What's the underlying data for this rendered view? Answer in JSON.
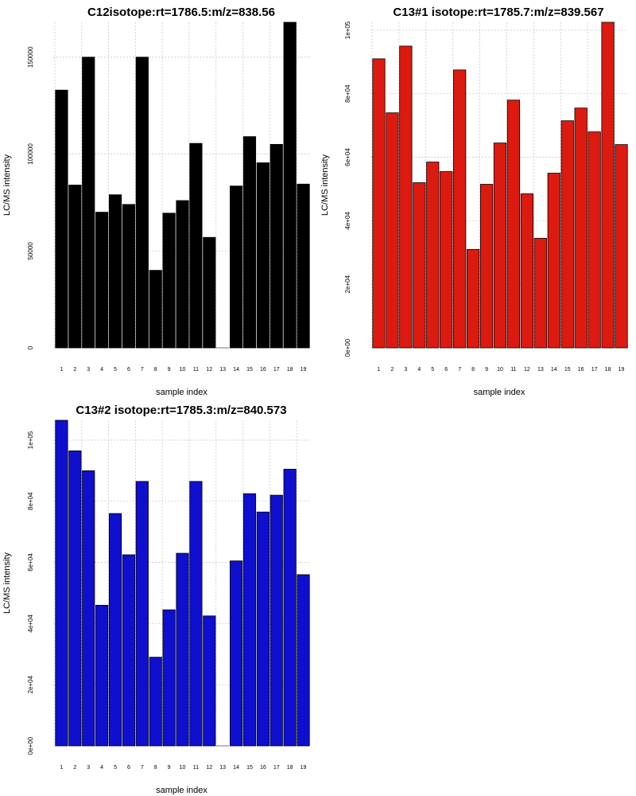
{
  "chart_data": [
    {
      "type": "bar",
      "title": "C12isotope:rt=1786.5:m/z=838.56",
      "xlabel": "sample index",
      "ylabel": "LC/MS intensity",
      "categories": [
        "1",
        "2",
        "3",
        "4",
        "5",
        "6",
        "7",
        "8",
        "9",
        "10",
        "11",
        "12",
        "13",
        "14",
        "15",
        "16",
        "17",
        "18",
        "19"
      ],
      "values": [
        133000,
        84000,
        150000,
        70000,
        79000,
        74000,
        150000,
        40000,
        69500,
        76000,
        105500,
        57000,
        0,
        83500,
        109000,
        95500,
        105000,
        168000,
        84500
      ],
      "ylim": [
        0,
        168000
      ],
      "yticks": [
        0,
        50000,
        100000,
        150000
      ],
      "ytick_labels": [
        "0",
        "50000",
        "100000",
        "150000"
      ],
      "grid": true,
      "bar_color": "#000000"
    },
    {
      "type": "bar",
      "title": "C13#1 isotope:rt=1785.7:m/z=839.567",
      "xlabel": "sample index",
      "ylabel": "LC/MS intensity",
      "categories": [
        "1",
        "2",
        "3",
        "4",
        "5",
        "6",
        "7",
        "8",
        "9",
        "10",
        "11",
        "12",
        "13",
        "14",
        "15",
        "16",
        "17",
        "18",
        "19"
      ],
      "values": [
        91000,
        74000,
        95000,
        52000,
        58500,
        55500,
        87500,
        31000,
        51500,
        64500,
        78000,
        48500,
        34500,
        55000,
        71500,
        75500,
        68000,
        102500,
        64000
      ],
      "ylim": [
        0,
        102500
      ],
      "yticks": [
        0,
        20000,
        40000,
        60000,
        80000,
        100000
      ],
      "ytick_labels": [
        "0e+00",
        "2e+04",
        "4e+04",
        "6e+04",
        "8e+04",
        "1e+05"
      ],
      "grid": true,
      "bar_color": "#dd1a10"
    },
    {
      "type": "bar",
      "title": "C13#2 isotope:rt=1785.3:m/z=840.573",
      "xlabel": "sample index",
      "ylabel": "LC/MS intensity",
      "categories": [
        "1",
        "2",
        "3",
        "4",
        "5",
        "6",
        "7",
        "8",
        "9",
        "10",
        "11",
        "12",
        "13",
        "14",
        "15",
        "16",
        "17",
        "18",
        "19"
      ],
      "values": [
        106500,
        96500,
        90000,
        46000,
        76000,
        62500,
        86500,
        29000,
        44500,
        63000,
        86500,
        42500,
        0,
        60500,
        82500,
        76500,
        82000,
        90500,
        56000
      ],
      "ylim": [
        0,
        106500
      ],
      "yticks": [
        0,
        20000,
        40000,
        60000,
        80000,
        100000
      ],
      "ytick_labels": [
        "0e+00",
        "2e+04",
        "4e+04",
        "6e+04",
        "8e+04",
        "1e+05"
      ],
      "grid": true,
      "bar_color": "#0f0fcf"
    }
  ]
}
